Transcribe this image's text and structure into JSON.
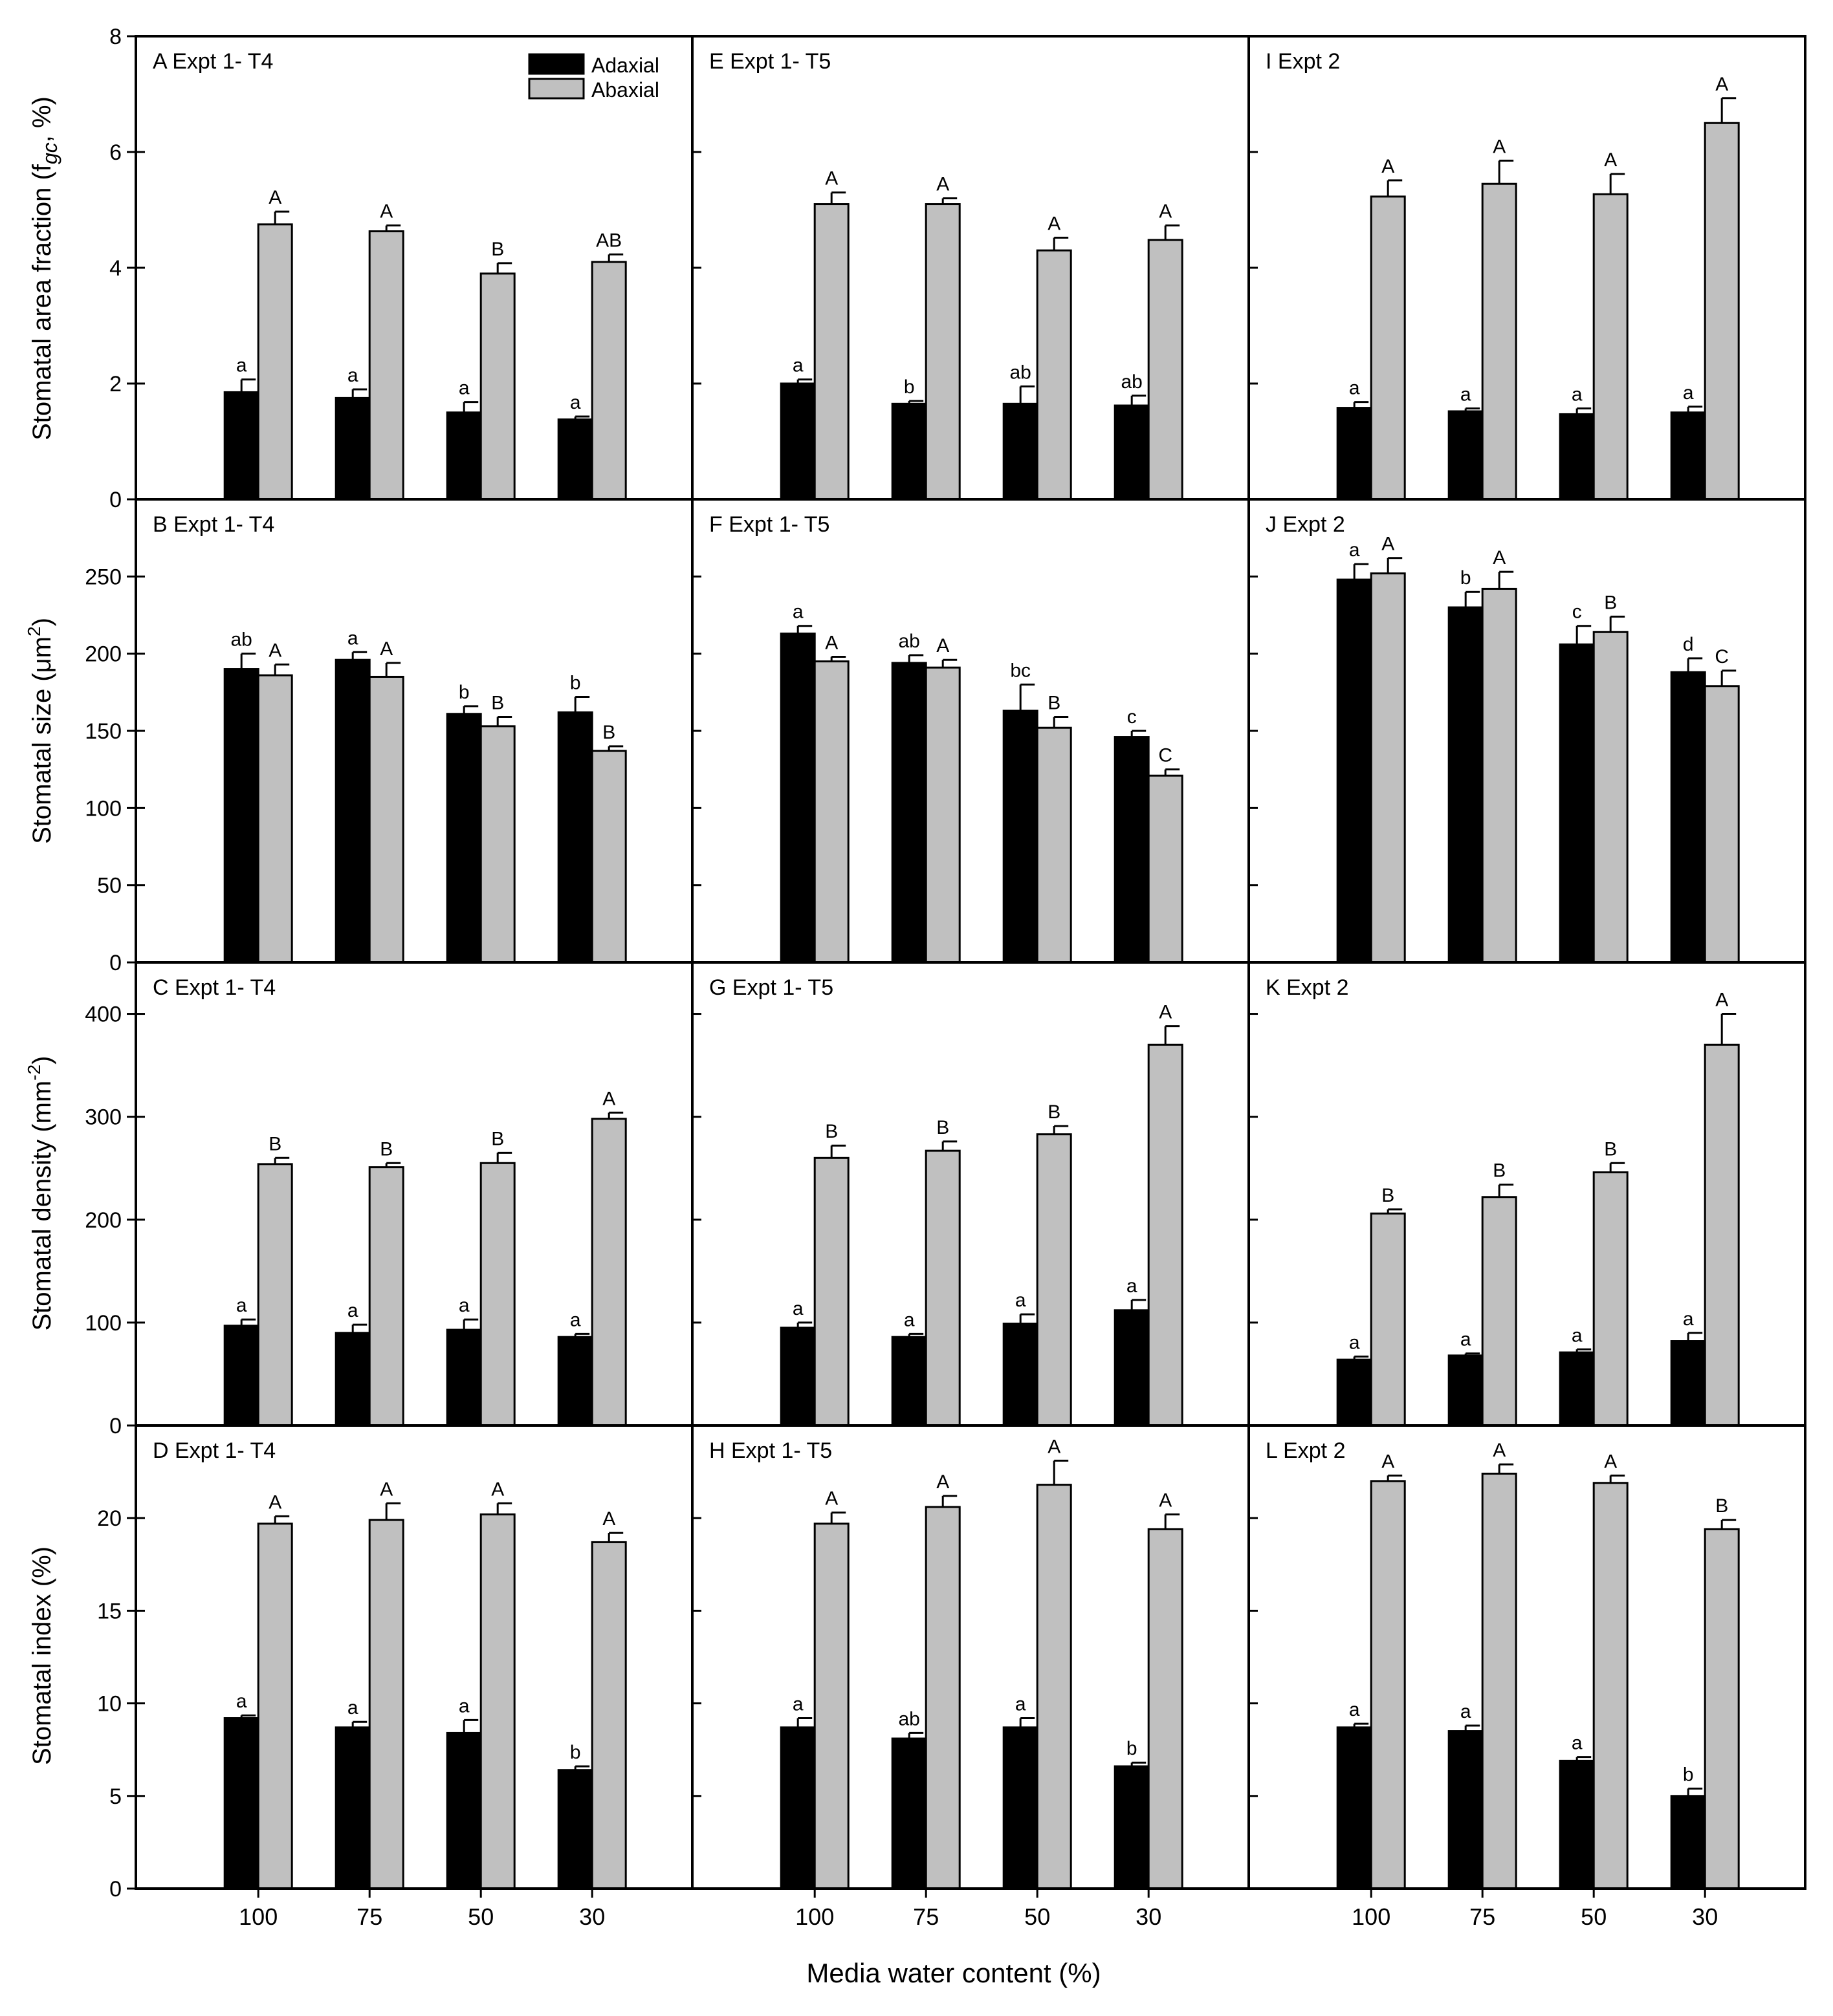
{
  "figure": {
    "x_label": "Media water content (%)",
    "x_categories": [
      "100",
      "75",
      "50",
      "30"
    ],
    "legend": {
      "adaxial": "Adaxial",
      "abaxial": "Abaxial"
    },
    "colors": {
      "adaxial": "#000000",
      "abaxial": "#c0c0c0"
    },
    "row_ylabels": [
      "Stomatal area fraction (f",
      "gc",
      ", %)",
      "Stomatal size (μm",
      "2",
      ")",
      "Stomatal density (mm",
      "-2",
      ")",
      "Stomatal index (%)"
    ]
  },
  "chart_data": [
    {
      "type": "bar",
      "panel": "A",
      "title": "A Expt 1- T4",
      "categories": [
        "100",
        "75",
        "50",
        "30"
      ],
      "ylim": [
        0,
        8
      ],
      "yticks": [
        0,
        2,
        4,
        6,
        8
      ],
      "series": [
        {
          "name": "Adaxial",
          "values": [
            1.85,
            1.75,
            1.5,
            1.38
          ],
          "errors": [
            0.22,
            0.15,
            0.18,
            0.05
          ],
          "letters": [
            "a",
            "a",
            "a",
            "a"
          ]
        },
        {
          "name": "Abaxial",
          "values": [
            4.75,
            4.63,
            3.9,
            4.1
          ],
          "errors": [
            0.22,
            0.1,
            0.18,
            0.13
          ],
          "letters": [
            "A",
            "A",
            "B",
            "AB"
          ]
        }
      ]
    },
    {
      "type": "bar",
      "panel": "E",
      "title": "E Expt 1- T5",
      "categories": [
        "100",
        "75",
        "50",
        "30"
      ],
      "ylim": [
        0,
        8
      ],
      "yticks": [
        0,
        2,
        4,
        6,
        8
      ],
      "series": [
        {
          "name": "Adaxial",
          "values": [
            2.0,
            1.65,
            1.65,
            1.62
          ],
          "errors": [
            0.07,
            0.05,
            0.3,
            0.17
          ],
          "letters": [
            "a",
            "b",
            "ab",
            "ab"
          ]
        },
        {
          "name": "Abaxial",
          "values": [
            5.1,
            5.1,
            4.3,
            4.48
          ],
          "errors": [
            0.2,
            0.1,
            0.22,
            0.25
          ],
          "letters": [
            "A",
            "A",
            "A",
            "A"
          ]
        }
      ]
    },
    {
      "type": "bar",
      "panel": "I",
      "title": "I Expt 2",
      "categories": [
        "100",
        "75",
        "50",
        "30"
      ],
      "ylim": [
        0,
        8
      ],
      "yticks": [
        0,
        2,
        4,
        6,
        8
      ],
      "series": [
        {
          "name": "Adaxial",
          "values": [
            1.58,
            1.52,
            1.47,
            1.5
          ],
          "errors": [
            0.1,
            0.05,
            0.1,
            0.1
          ],
          "letters": [
            "a",
            "a",
            "a",
            "a"
          ]
        },
        {
          "name": "Abaxial",
          "values": [
            5.23,
            5.45,
            5.27,
            6.5
          ],
          "errors": [
            0.28,
            0.4,
            0.35,
            0.43
          ],
          "letters": [
            "A",
            "A",
            "A",
            "A"
          ]
        }
      ]
    },
    {
      "type": "bar",
      "panel": "B",
      "title": "B Expt 1- T4",
      "categories": [
        "100",
        "75",
        "50",
        "30"
      ],
      "ylim": [
        0,
        300
      ],
      "yticks": [
        0,
        50,
        100,
        150,
        200,
        250
      ],
      "series": [
        {
          "name": "Adaxial",
          "values": [
            190,
            196,
            161,
            162
          ],
          "errors": [
            10,
            5,
            5,
            10
          ],
          "letters": [
            "ab",
            "a",
            "b",
            "b"
          ]
        },
        {
          "name": "Abaxial",
          "values": [
            186,
            185,
            153,
            137
          ],
          "errors": [
            7,
            9,
            6,
            3
          ],
          "letters": [
            "A",
            "A",
            "B",
            "B"
          ]
        }
      ]
    },
    {
      "type": "bar",
      "panel": "F",
      "title": "F Expt 1- T5",
      "categories": [
        "100",
        "75",
        "50",
        "30"
      ],
      "ylim": [
        0,
        300
      ],
      "yticks": [
        0,
        50,
        100,
        150,
        200,
        250
      ],
      "series": [
        {
          "name": "Adaxial",
          "values": [
            213,
            194,
            163,
            146
          ],
          "errors": [
            5,
            5,
            17,
            4
          ],
          "letters": [
            "a",
            "ab",
            "bc",
            "c"
          ]
        },
        {
          "name": "Abaxial",
          "values": [
            195,
            191,
            152,
            121
          ],
          "errors": [
            3,
            5,
            7,
            4
          ],
          "letters": [
            "A",
            "A",
            "B",
            "C"
          ]
        }
      ]
    },
    {
      "type": "bar",
      "panel": "J",
      "title": "J Expt 2",
      "categories": [
        "100",
        "75",
        "50",
        "30"
      ],
      "ylim": [
        0,
        300
      ],
      "yticks": [
        0,
        50,
        100,
        150,
        200,
        250
      ],
      "series": [
        {
          "name": "Adaxial",
          "values": [
            248,
            230,
            206,
            188
          ],
          "errors": [
            10,
            10,
            12,
            9
          ],
          "letters": [
            "a",
            "b",
            "c",
            "d"
          ]
        },
        {
          "name": "Abaxial",
          "values": [
            252,
            242,
            214,
            179
          ],
          "errors": [
            10,
            11,
            10,
            10
          ],
          "letters": [
            "A",
            "A",
            "B",
            "C"
          ]
        }
      ]
    },
    {
      "type": "bar",
      "panel": "C",
      "title": "C Expt 1- T4",
      "categories": [
        "100",
        "75",
        "50",
        "30"
      ],
      "ylim": [
        0,
        450
      ],
      "yticks": [
        0,
        100,
        200,
        300,
        400
      ],
      "series": [
        {
          "name": "Adaxial",
          "values": [
            97,
            90,
            93,
            86
          ],
          "errors": [
            6,
            8,
            10,
            3
          ],
          "letters": [
            "a",
            "a",
            "a",
            "a"
          ]
        },
        {
          "name": "Abaxial",
          "values": [
            254,
            251,
            255,
            298
          ],
          "errors": [
            6,
            4,
            10,
            6
          ],
          "letters": [
            "B",
            "B",
            "B",
            "A"
          ]
        }
      ]
    },
    {
      "type": "bar",
      "panel": "G",
      "title": "G Expt 1- T5",
      "categories": [
        "100",
        "75",
        "50",
        "30"
      ],
      "ylim": [
        0,
        450
      ],
      "yticks": [
        0,
        100,
        200,
        300,
        400
      ],
      "series": [
        {
          "name": "Adaxial",
          "values": [
            95,
            86,
            99,
            112
          ],
          "errors": [
            5,
            3,
            9,
            10
          ],
          "letters": [
            "a",
            "a",
            "a",
            "a"
          ]
        },
        {
          "name": "Abaxial",
          "values": [
            260,
            267,
            283,
            370
          ],
          "errors": [
            12,
            9,
            8,
            18
          ],
          "letters": [
            "B",
            "B",
            "B",
            "A"
          ]
        }
      ]
    },
    {
      "type": "bar",
      "panel": "K",
      "title": "K Expt 2",
      "categories": [
        "100",
        "75",
        "50",
        "30"
      ],
      "ylim": [
        0,
        450
      ],
      "yticks": [
        0,
        100,
        200,
        300,
        400
      ],
      "series": [
        {
          "name": "Adaxial",
          "values": [
            64,
            68,
            71,
            82
          ],
          "errors": [
            3,
            2,
            3,
            8
          ],
          "letters": [
            "a",
            "a",
            "a",
            "a"
          ]
        },
        {
          "name": "Abaxial",
          "values": [
            206,
            222,
            246,
            370
          ],
          "errors": [
            4,
            12,
            9,
            30
          ],
          "letters": [
            "B",
            "B",
            "B",
            "A"
          ]
        }
      ]
    },
    {
      "type": "bar",
      "panel": "D",
      "title": "D Expt 1- T4",
      "categories": [
        "100",
        "75",
        "50",
        "30"
      ],
      "ylim": [
        0,
        25
      ],
      "yticks": [
        0,
        5,
        10,
        15,
        20
      ],
      "series": [
        {
          "name": "Adaxial",
          "values": [
            9.2,
            8.7,
            8.4,
            6.4
          ],
          "errors": [
            0.15,
            0.3,
            0.7,
            0.2
          ],
          "letters": [
            "a",
            "a",
            "a",
            "b"
          ]
        },
        {
          "name": "Abaxial",
          "values": [
            19.7,
            19.9,
            20.2,
            18.7
          ],
          "errors": [
            0.4,
            0.9,
            0.6,
            0.5
          ],
          "letters": [
            "A",
            "A",
            "A",
            "A"
          ]
        }
      ]
    },
    {
      "type": "bar",
      "panel": "H",
      "title": "H Expt 1- T5",
      "categories": [
        "100",
        "75",
        "50",
        "30"
      ],
      "ylim": [
        0,
        25
      ],
      "yticks": [
        0,
        5,
        10,
        15,
        20
      ],
      "series": [
        {
          "name": "Adaxial",
          "values": [
            8.7,
            8.1,
            8.7,
            6.6
          ],
          "errors": [
            0.5,
            0.3,
            0.5,
            0.2
          ],
          "letters": [
            "a",
            "ab",
            "a",
            "b"
          ]
        },
        {
          "name": "Abaxial",
          "values": [
            19.7,
            20.6,
            21.8,
            19.4
          ],
          "errors": [
            0.6,
            0.6,
            1.3,
            0.8
          ],
          "letters": [
            "A",
            "A",
            "A",
            "A"
          ]
        }
      ]
    },
    {
      "type": "bar",
      "panel": "L",
      "title": "L Expt 2",
      "categories": [
        "100",
        "75",
        "50",
        "30"
      ],
      "ylim": [
        0,
        25
      ],
      "yticks": [
        0,
        5,
        10,
        15,
        20
      ],
      "series": [
        {
          "name": "Adaxial",
          "values": [
            8.7,
            8.5,
            6.9,
            5.0
          ],
          "errors": [
            0.2,
            0.3,
            0.2,
            0.4
          ],
          "letters": [
            "a",
            "a",
            "a",
            "b"
          ]
        },
        {
          "name": "Abaxial",
          "values": [
            22.0,
            22.4,
            21.9,
            19.4
          ],
          "errors": [
            0.3,
            0.5,
            0.4,
            0.5
          ],
          "letters": [
            "A",
            "A",
            "A",
            "B"
          ]
        }
      ]
    }
  ]
}
